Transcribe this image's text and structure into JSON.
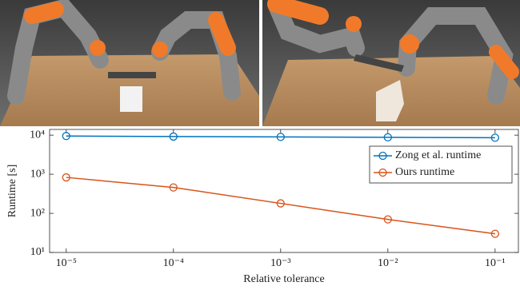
{
  "chart_data": {
    "type": "line",
    "x": [
      1e-05,
      0.0001,
      0.001,
      0.01,
      0.1
    ],
    "xlabel": "Relative tolerance",
    "ylabel": "Runtime [s]",
    "xscale": "log",
    "yscale": "log",
    "xlim": [
      7e-06,
      0.165
    ],
    "ylim": [
      10,
      14000
    ],
    "xticks": [
      {
        "value": 1e-05,
        "label": "10⁻⁵"
      },
      {
        "value": 0.0001,
        "label": "10⁻⁴"
      },
      {
        "value": 0.001,
        "label": "10⁻³"
      },
      {
        "value": 0.01,
        "label": "10⁻²"
      },
      {
        "value": 0.1,
        "label": "10⁻¹"
      }
    ],
    "yticks": [
      {
        "value": 10,
        "label": "10¹"
      },
      {
        "value": 100,
        "label": "10²"
      },
      {
        "value": 1000,
        "label": "10³"
      },
      {
        "value": 10000,
        "label": "10⁴"
      }
    ],
    "grid": false,
    "legend": "upper right",
    "series": [
      {
        "name": "Zong et al. runtime",
        "color": "#0072bd",
        "values": [
          9500,
          9200,
          9000,
          8800,
          8600
        ]
      },
      {
        "name": "Ours runtime",
        "color": "#d95319",
        "values": [
          830,
          460,
          180,
          70,
          30
        ]
      }
    ]
  }
}
